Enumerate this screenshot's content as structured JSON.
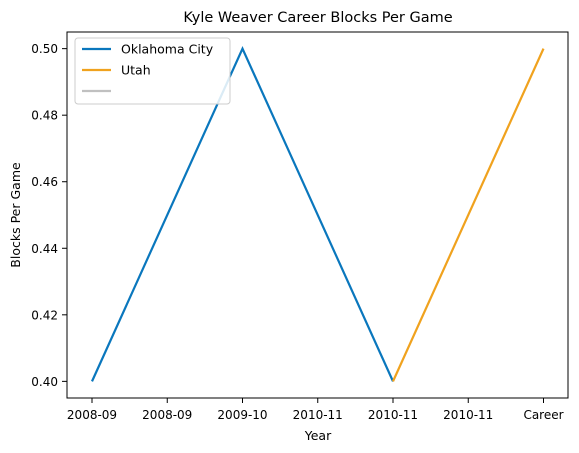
{
  "chart_data": {
    "type": "line",
    "title": "Kyle Weaver Career Blocks Per Game",
    "xlabel": "Year",
    "ylabel": "Blocks Per Game",
    "categories": [
      "2008-09",
      "2008-09",
      "2009-10",
      "2010-11",
      "2010-11",
      "2010-11",
      "Career"
    ],
    "ylim": [
      0.395,
      0.505
    ],
    "yticks": [
      0.4,
      0.42,
      0.44,
      0.46,
      0.48,
      0.5
    ],
    "ytick_labels": [
      "0.40",
      "0.42",
      "0.44",
      "0.46",
      "0.48",
      "0.50"
    ],
    "grid": false,
    "legend_position": "top-left",
    "series": [
      {
        "name": "Oklahoma City",
        "color": "#0a77bd",
        "points": [
          [
            0,
            0.4
          ],
          [
            2,
            0.5
          ],
          [
            4,
            0.4
          ]
        ]
      },
      {
        "name": "Utah",
        "color": "#f0a21e",
        "points": [
          [
            4,
            0.4
          ],
          [
            6,
            0.5
          ]
        ]
      },
      {
        "name": "",
        "color": "#c0c0c0",
        "points": []
      }
    ]
  }
}
